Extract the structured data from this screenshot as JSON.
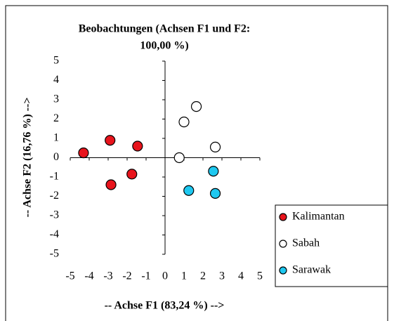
{
  "chart_data": {
    "type": "scatter",
    "title": [
      "Beobachtungen (Achsen F1 und F2:",
      "100,00 %)"
    ],
    "x_label": "-- Achse F1 (83,24 %) -->",
    "y_label": "-- Achse F2 (16,76 %) -->",
    "xlim": [
      -5,
      5
    ],
    "ylim": [
      -5,
      5
    ],
    "xticks": [
      -5,
      -4,
      -3,
      -2,
      -1,
      0,
      1,
      2,
      3,
      4,
      5
    ],
    "yticks": [
      -5,
      -4,
      -3,
      -2,
      -1,
      0,
      1,
      2,
      3,
      4,
      5
    ],
    "legend": "right",
    "series": [
      {
        "name": "Kalimantan",
        "color": "#e8141c",
        "x": [
          -4.3,
          -2.9,
          -1.45,
          -1.75,
          -2.85
        ],
        "values": [
          0.25,
          0.9,
          0.6,
          -0.85,
          -1.4
        ]
      },
      {
        "name": "Sabah",
        "color": "#ffffff",
        "x": [
          0.75,
          1.0,
          1.65,
          2.65
        ],
        "values": [
          0,
          1.85,
          2.65,
          0.55
        ]
      },
      {
        "name": "Sarawak",
        "color": "#1ec8f0",
        "x": [
          2.55,
          1.25,
          2.65
        ],
        "values": [
          -0.7,
          -1.7,
          -1.85
        ]
      }
    ]
  }
}
